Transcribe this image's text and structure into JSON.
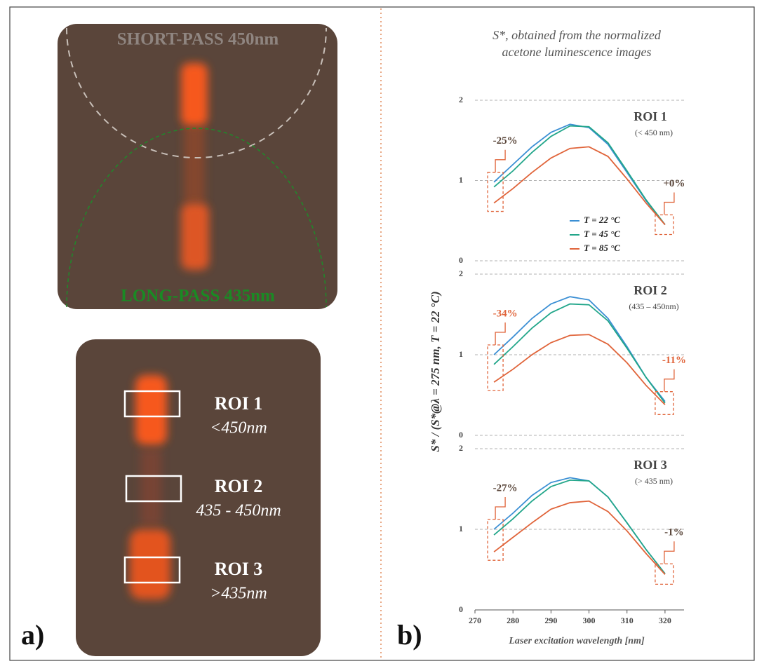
{
  "panel_a": {
    "label": "a)",
    "short_pass": "SHORT-PASS 450nm",
    "long_pass": "LONG-PASS 435nm",
    "rois": [
      {
        "name": "ROI 1",
        "range": "<450nm"
      },
      {
        "name": "ROI 2",
        "range": "435 - 450nm"
      },
      {
        "name": "ROI 3",
        "range": ">435nm"
      }
    ]
  },
  "panel_b": {
    "label": "b)",
    "title_line1": "S*, obtained from the normalized",
    "title_line2": "acetone luminescence images",
    "y_label": "S* / (S*@λ = 275 nm, T = 22 °C)",
    "x_label": "Laser excitation wavelength [nm]"
  },
  "chart_data": [
    {
      "type": "line",
      "title": "ROI 1",
      "subtitle": "(< 450 nm)",
      "x": [
        275,
        280,
        285,
        290,
        295,
        300,
        305,
        310,
        315,
        320
      ],
      "series": [
        {
          "name": "T = 22 °C",
          "color": "#3b8fd4",
          "values": [
            0.98,
            1.2,
            1.42,
            1.6,
            1.7,
            1.66,
            1.45,
            1.1,
            0.75,
            0.45
          ]
        },
        {
          "name": "T = 45 °C",
          "color": "#22a68a",
          "values": [
            0.92,
            1.12,
            1.35,
            1.55,
            1.68,
            1.67,
            1.47,
            1.12,
            0.76,
            0.45
          ]
        },
        {
          "name": "T = 85 °C",
          "color": "#e0643a",
          "values": [
            0.72,
            0.9,
            1.1,
            1.28,
            1.4,
            1.42,
            1.3,
            1.02,
            0.72,
            0.45
          ]
        }
      ],
      "xlim": [
        270,
        325
      ],
      "ylim": [
        0,
        2
      ],
      "yticks": [
        0,
        1,
        2
      ],
      "grid": true,
      "annotations": [
        {
          "text": "-25%",
          "color": "#5a463a"
        },
        {
          "text": "+0%",
          "color": "#5a463a"
        }
      ]
    },
    {
      "type": "line",
      "title": "ROI 2",
      "subtitle": "(435 – 450nm)",
      "x": [
        275,
        280,
        285,
        290,
        295,
        300,
        305,
        310,
        315,
        320
      ],
      "series": [
        {
          "color": "#3b8fd4",
          "values": [
            1.0,
            1.22,
            1.45,
            1.63,
            1.72,
            1.68,
            1.45,
            1.1,
            0.72,
            0.42
          ]
        },
        {
          "color": "#22a68a",
          "values": [
            0.88,
            1.1,
            1.33,
            1.52,
            1.63,
            1.62,
            1.42,
            1.08,
            0.72,
            0.4
          ]
        },
        {
          "color": "#e0643a",
          "values": [
            0.66,
            0.82,
            1.0,
            1.15,
            1.24,
            1.25,
            1.13,
            0.9,
            0.62,
            0.38
          ]
        }
      ],
      "xlim": [
        270,
        325
      ],
      "ylim": [
        0,
        2
      ],
      "yticks": [
        0,
        1,
        2
      ],
      "grid": true,
      "annotations": [
        {
          "text": "-34%",
          "color": "#e0643a"
        },
        {
          "text": "-11%",
          "color": "#e0643a"
        }
      ]
    },
    {
      "type": "line",
      "title": "ROI 3",
      "subtitle": "(> 435 nm)",
      "x": [
        275,
        280,
        285,
        290,
        295,
        300,
        305,
        310,
        315,
        320
      ],
      "series": [
        {
          "color": "#3b8fd4",
          "values": [
            1.0,
            1.2,
            1.42,
            1.58,
            1.64,
            1.6,
            1.4,
            1.08,
            0.75,
            0.45
          ]
        },
        {
          "color": "#22a68a",
          "values": [
            0.93,
            1.13,
            1.35,
            1.53,
            1.61,
            1.6,
            1.4,
            1.08,
            0.75,
            0.45
          ]
        },
        {
          "color": "#e0643a",
          "values": [
            0.72,
            0.9,
            1.08,
            1.25,
            1.33,
            1.35,
            1.22,
            0.98,
            0.7,
            0.44
          ]
        }
      ],
      "xlim": [
        270,
        325
      ],
      "ylim": [
        0,
        2
      ],
      "yticks": [
        0,
        1,
        2
      ],
      "xticks": [
        270,
        280,
        290,
        300,
        310,
        320
      ],
      "grid": true,
      "annotations": [
        {
          "text": "-27%",
          "color": "#5a463a"
        },
        {
          "text": "-1%",
          "color": "#5a463a"
        }
      ]
    }
  ]
}
